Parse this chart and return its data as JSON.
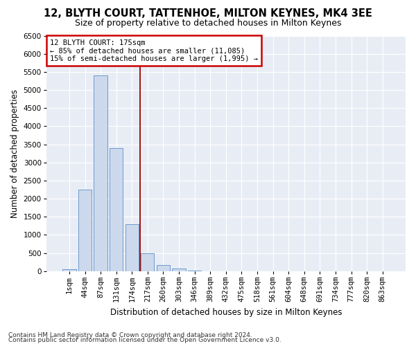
{
  "title": "12, BLYTH COURT, TATTENHOE, MILTON KEYNES, MK4 3EE",
  "subtitle": "Size of property relative to detached houses in Milton Keynes",
  "xlabel": "Distribution of detached houses by size in Milton Keynes",
  "ylabel": "Number of detached properties",
  "bar_labels": [
    "1sqm",
    "44sqm",
    "87sqm",
    "131sqm",
    "174sqm",
    "217sqm",
    "260sqm",
    "303sqm",
    "346sqm",
    "389sqm",
    "432sqm",
    "475sqm",
    "518sqm",
    "561sqm",
    "604sqm",
    "648sqm",
    "691sqm",
    "734sqm",
    "777sqm",
    "820sqm",
    "863sqm"
  ],
  "bar_values": [
    50,
    2250,
    5400,
    3400,
    1300,
    500,
    175,
    75,
    10,
    0,
    0,
    0,
    0,
    0,
    0,
    0,
    0,
    0,
    0,
    0,
    0
  ],
  "bar_color": "#ccd9ed",
  "bar_edge_color": "#5b8dc8",
  "vline_x": 4.5,
  "vline_color": "#990000",
  "annotation_text": "12 BLYTH COURT: 175sqm\n← 85% of detached houses are smaller (11,085)\n15% of semi-detached houses are larger (1,995) →",
  "annotation_box_color": "white",
  "annotation_box_edge": "#cc0000",
  "ylim": [
    0,
    6500
  ],
  "yticks": [
    0,
    500,
    1000,
    1500,
    2000,
    2500,
    3000,
    3500,
    4000,
    4500,
    5000,
    5500,
    6000,
    6500
  ],
  "footer1": "Contains HM Land Registry data © Crown copyright and database right 2024.",
  "footer2": "Contains public sector information licensed under the Open Government Licence v3.0.",
  "bg_color": "#ffffff",
  "plot_bg_color": "#e8edf5",
  "grid_color": "#ffffff",
  "title_fontsize": 10.5,
  "subtitle_fontsize": 9,
  "axis_label_fontsize": 8.5,
  "tick_fontsize": 7.5,
  "footer_fontsize": 6.5,
  "annotation_fontsize": 7.5
}
